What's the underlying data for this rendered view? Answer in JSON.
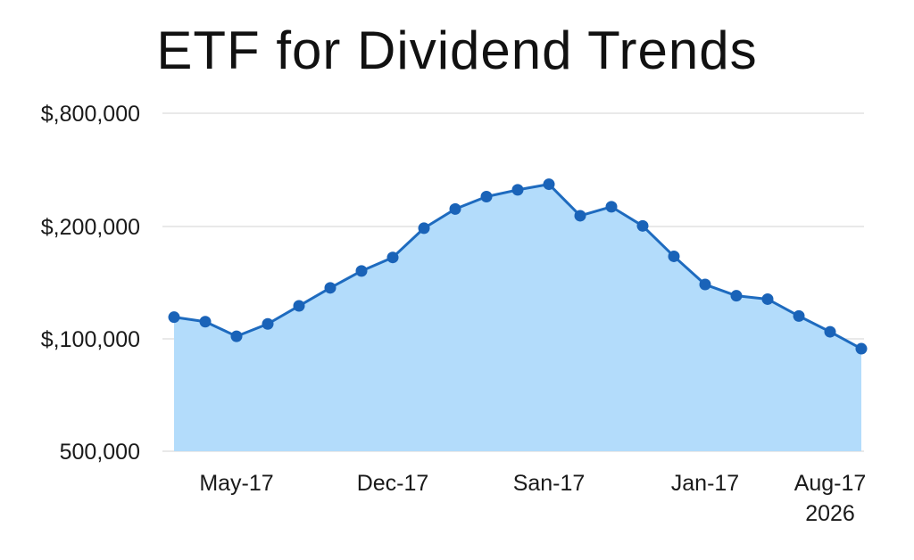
{
  "chart_data": {
    "type": "area",
    "title": "ETF for Dividend Trends",
    "xlabel": "",
    "ylabel": "",
    "y_tick_labels": [
      "$,800,000",
      "$,200,000",
      "$,100,000",
      "500,000"
    ],
    "x_tick_labels": [
      {
        "label": "May-17",
        "index": 2
      },
      {
        "label": "Dec-17",
        "index": 7
      },
      {
        "label": "San-17",
        "index": 12
      },
      {
        "label": "Jan-17",
        "index": 17
      },
      {
        "label": "Aug-17",
        "index": 21
      }
    ],
    "x_footer_label": "2026",
    "grid": true,
    "colors": {
      "line": "#1e6bbf",
      "fill": "#b3dcfb",
      "marker": "#1a63b8"
    },
    "series": [
      {
        "name": "ETF",
        "values": [
          0.595,
          0.575,
          0.51,
          0.565,
          0.645,
          0.725,
          0.8,
          0.86,
          0.99,
          1.075,
          1.13,
          1.16,
          1.185,
          1.045,
          1.085,
          1.0,
          0.865,
          0.74,
          0.69,
          0.675,
          0.6,
          0.53,
          0.455
        ]
      }
    ],
    "ylim": [
      0,
      1.5
    ]
  }
}
